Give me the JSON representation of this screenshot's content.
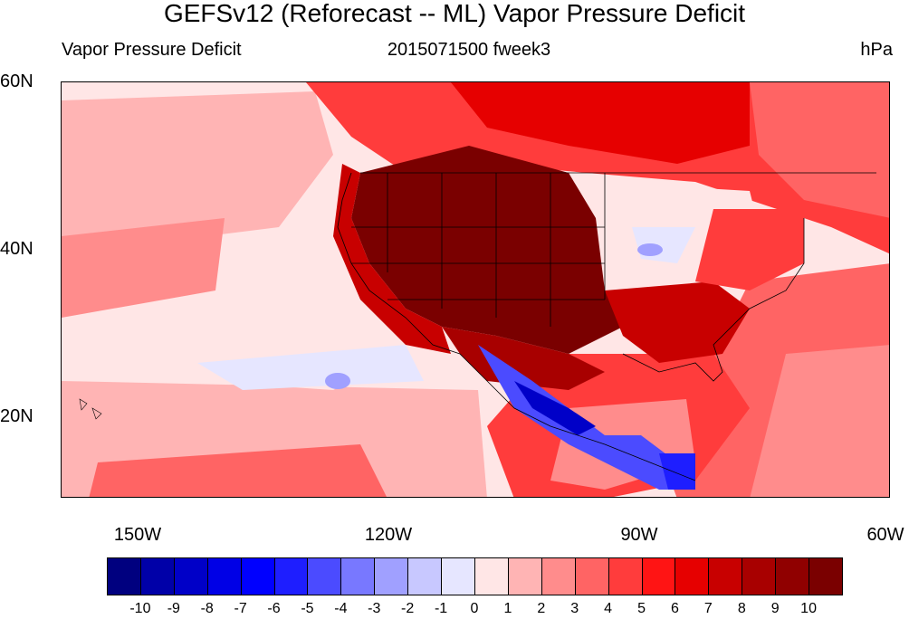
{
  "title": "GEFSv12 (Reforecast -- ML) Vapor Pressure Deficit",
  "subtitle_left": "Vapor Pressure Deficit",
  "subtitle_center": "2015071500 fweek3",
  "subtitle_right": "hPa",
  "lat_labels": [
    "60N",
    "40N",
    "20N"
  ],
  "lon_labels": [
    "150W",
    "120W",
    "90W",
    "60W"
  ],
  "colorbar": {
    "labels": [
      "-10",
      "-9",
      "-8",
      "-7",
      "-6",
      "-5",
      "-4",
      "-3",
      "-2",
      "-1",
      "0",
      "1",
      "2",
      "3",
      "4",
      "5",
      "6",
      "7",
      "8",
      "9",
      "10"
    ],
    "colors": [
      "#00007f",
      "#0000a8",
      "#0000c8",
      "#0000e6",
      "#0000ff",
      "#1e1eff",
      "#4b4bff",
      "#7878ff",
      "#a0a0ff",
      "#c8c8ff",
      "#e6e6ff",
      "#ffe6e6",
      "#ffb4b4",
      "#ff8c8c",
      "#ff6464",
      "#ff3c3c",
      "#ff1414",
      "#e60000",
      "#c80000",
      "#a80000",
      "#900000",
      "#7a0000"
    ]
  }
}
